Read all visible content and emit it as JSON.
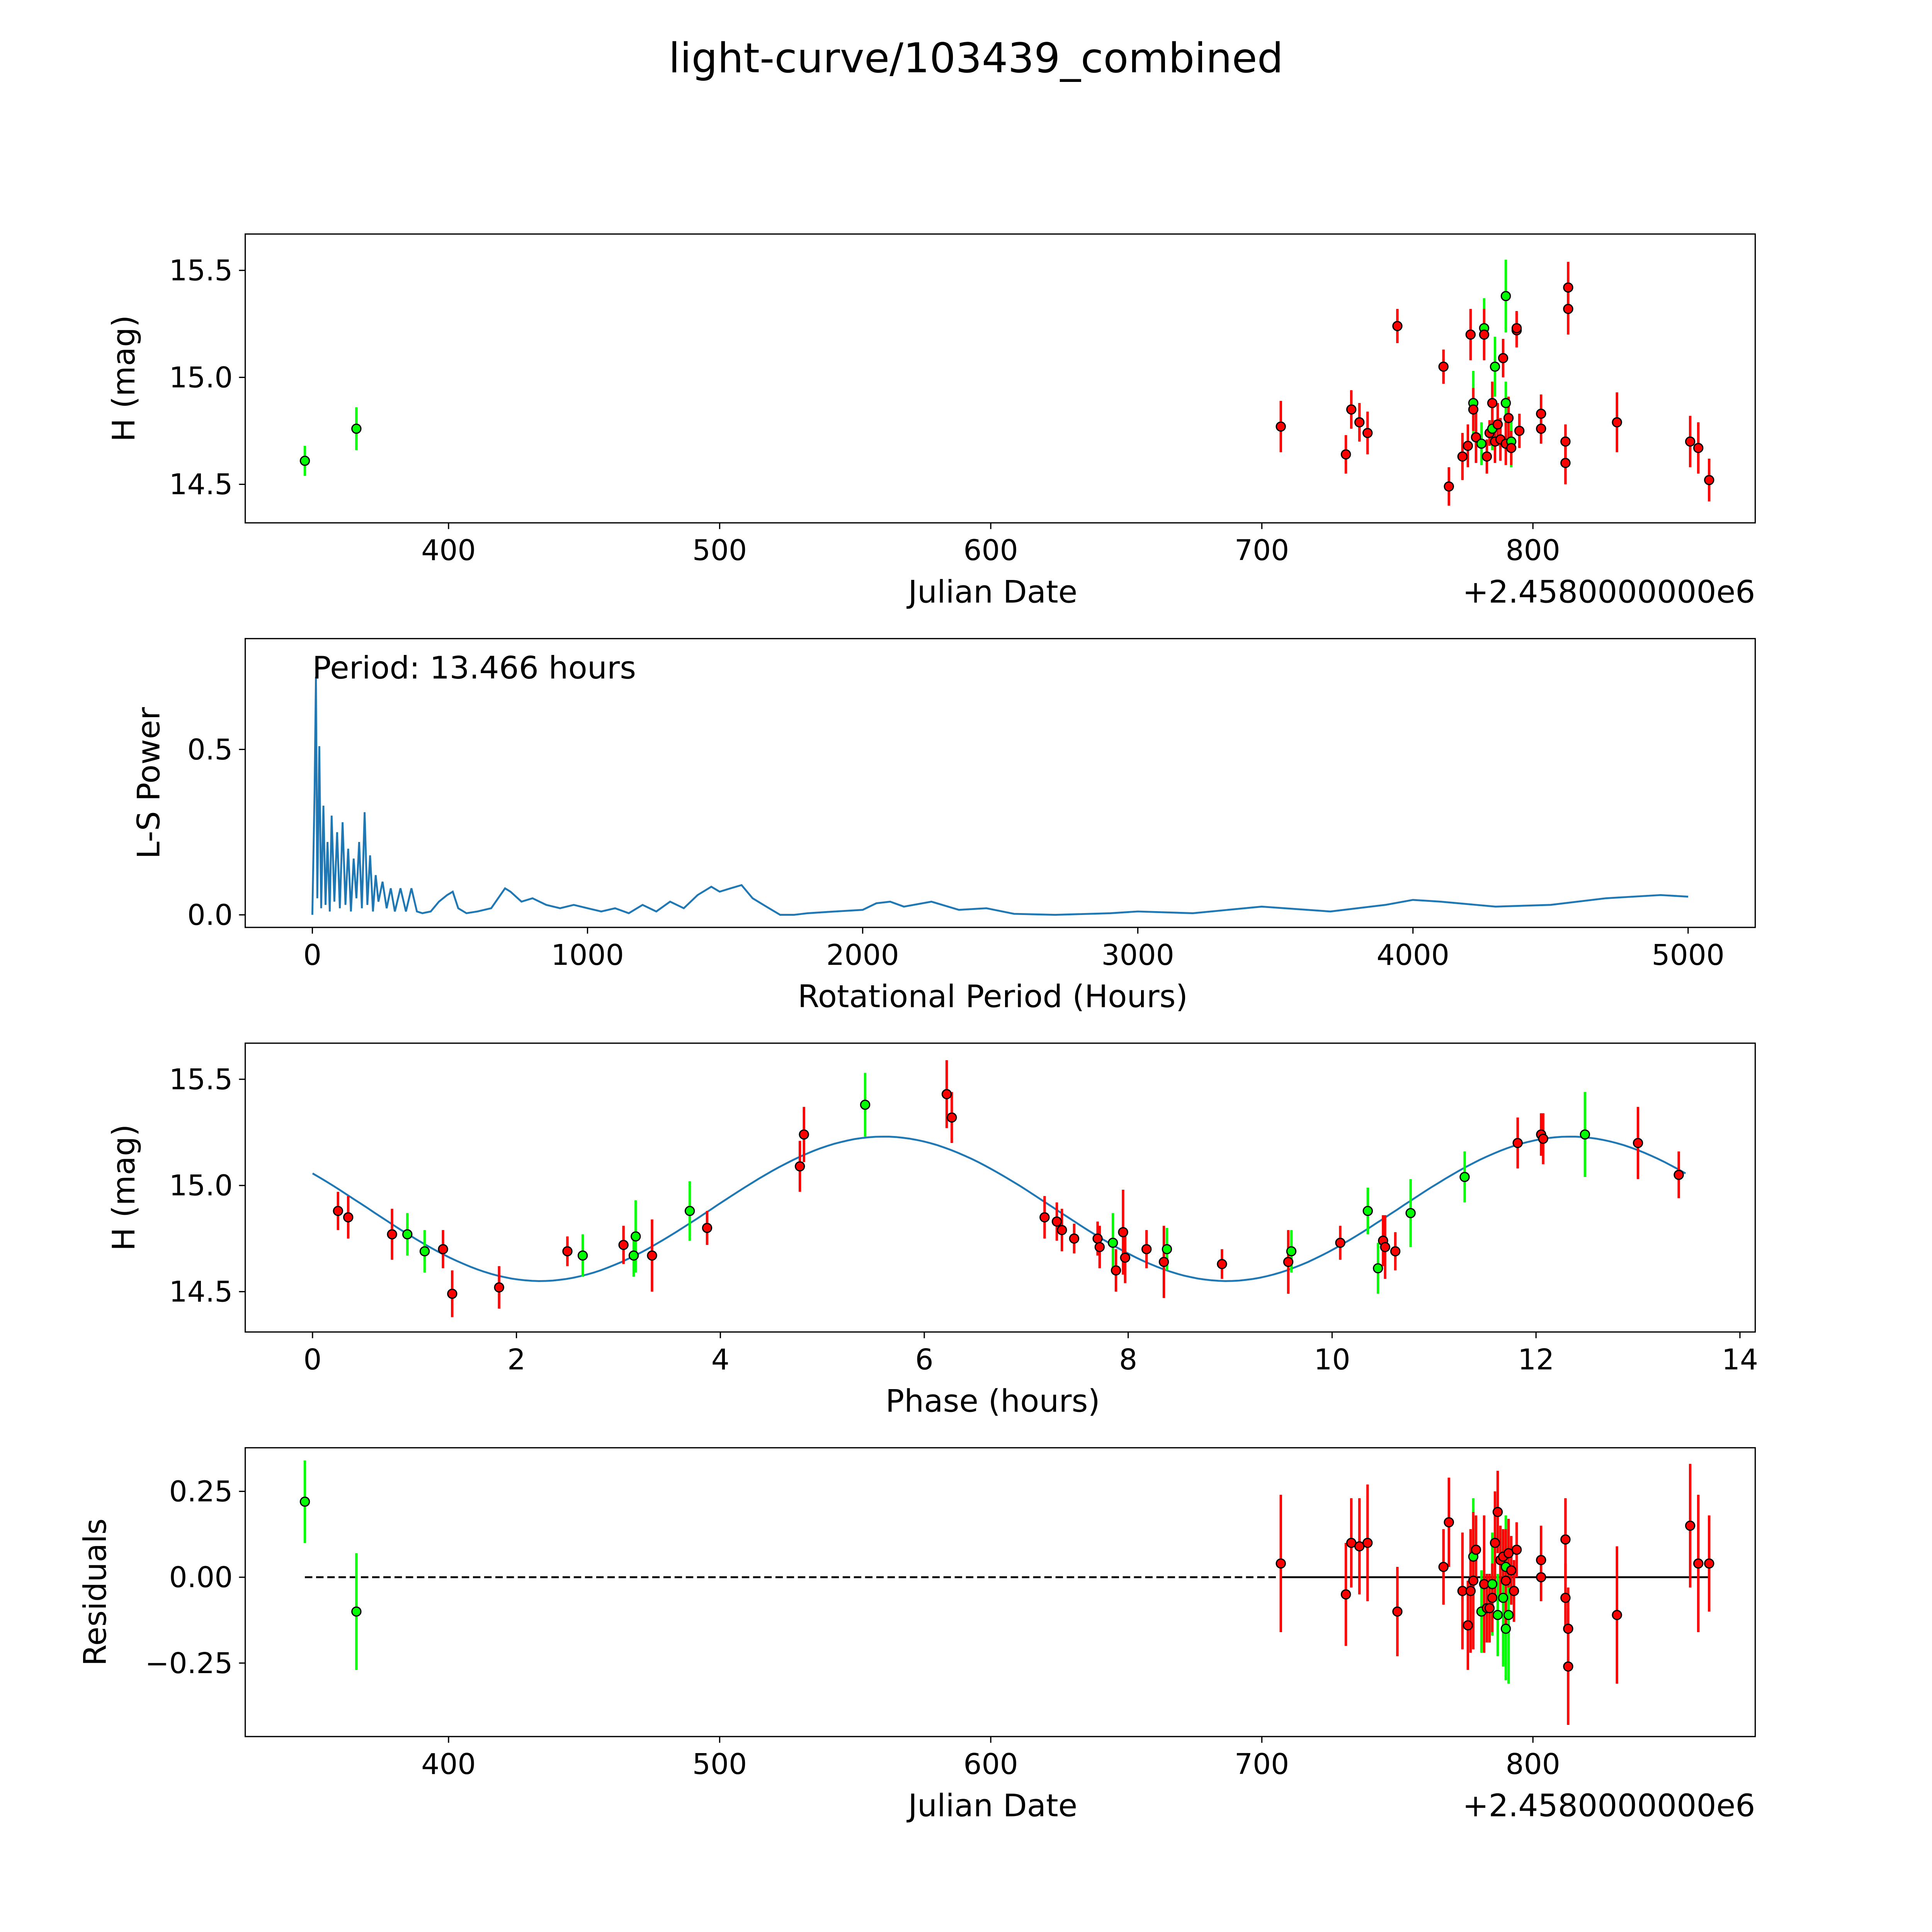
{
  "title": "light-curve/103439_combined",
  "colors": {
    "red": "#ff0000",
    "green": "#00ff00",
    "curve": "#1f77b4",
    "edge": "#000000"
  },
  "chart_data": [
    {
      "id": "p1",
      "type": "scatter",
      "xlabel": "Julian Date",
      "ylabel": "H (mag)",
      "offset_label": "+2.4580000000e6",
      "xlim": [
        325,
        882
      ],
      "ylim": [
        14.32,
        15.67
      ],
      "xticks": [
        400,
        500,
        600,
        700,
        800
      ],
      "yticks": [
        14.5,
        15.0,
        15.5
      ],
      "ytick_labels": [
        "14.5",
        "15.0",
        "15.5"
      ],
      "points": [
        [
          347,
          14.61,
          0.07,
          "green"
        ],
        [
          366,
          14.76,
          0.1,
          "green"
        ],
        [
          707,
          14.77,
          0.12,
          "red"
        ],
        [
          731,
          14.64,
          0.09,
          "red"
        ],
        [
          733,
          14.85,
          0.09,
          "red"
        ],
        [
          736,
          14.79,
          0.09,
          "red"
        ],
        [
          739,
          14.74,
          0.1,
          "red"
        ],
        [
          750,
          15.24,
          0.08,
          "red"
        ],
        [
          767,
          15.05,
          0.08,
          "red"
        ],
        [
          769,
          14.49,
          0.09,
          "red"
        ],
        [
          774,
          14.63,
          0.11,
          "red"
        ],
        [
          776,
          14.68,
          0.1,
          "red"
        ],
        [
          777,
          15.2,
          0.12,
          "red"
        ],
        [
          778,
          14.88,
          0.15,
          "green"
        ],
        [
          778,
          14.85,
          0.1,
          "red"
        ],
        [
          779,
          14.72,
          0.12,
          "red"
        ],
        [
          781,
          14.69,
          0.1,
          "green"
        ],
        [
          782,
          15.23,
          0.14,
          "green"
        ],
        [
          782,
          15.2,
          0.12,
          "red"
        ],
        [
          783,
          14.63,
          0.08,
          "red"
        ],
        [
          784,
          14.74,
          0.06,
          "red"
        ],
        [
          785,
          14.76,
          0.1,
          "green"
        ],
        [
          785,
          14.88,
          0.1,
          "red"
        ],
        [
          786,
          15.05,
          0.14,
          "green"
        ],
        [
          786,
          14.7,
          0.1,
          "red"
        ],
        [
          787,
          14.78,
          0.1,
          "red"
        ],
        [
          788,
          14.71,
          0.1,
          "red"
        ],
        [
          789,
          15.09,
          0.09,
          "red"
        ],
        [
          790,
          15.38,
          0.17,
          "green"
        ],
        [
          790,
          14.88,
          0.1,
          "green"
        ],
        [
          790,
          14.69,
          0.1,
          "red"
        ],
        [
          791,
          14.81,
          0.1,
          "red"
        ],
        [
          792,
          14.7,
          0.12,
          "green"
        ],
        [
          792,
          14.67,
          0.08,
          "red"
        ],
        [
          794,
          15.22,
          0.08,
          "red"
        ],
        [
          794,
          15.23,
          0.08,
          "red"
        ],
        [
          795,
          14.75,
          0.08,
          "red"
        ],
        [
          803,
          14.83,
          0.09,
          "red"
        ],
        [
          803,
          14.76,
          0.07,
          "red"
        ],
        [
          812,
          14.7,
          0.08,
          "red"
        ],
        [
          812,
          14.6,
          0.1,
          "red"
        ],
        [
          813,
          15.42,
          0.12,
          "red"
        ],
        [
          813,
          15.32,
          0.12,
          "red"
        ],
        [
          831,
          14.79,
          0.14,
          "red"
        ],
        [
          858,
          14.7,
          0.12,
          "red"
        ],
        [
          861,
          14.67,
          0.12,
          "red"
        ],
        [
          865,
          14.52,
          0.1,
          "red"
        ]
      ]
    },
    {
      "id": "p2",
      "type": "line",
      "xlabel": "Rotational Period (Hours)",
      "ylabel": "L-S Power",
      "annotation": "Period: 13.466 hours",
      "xlim": [
        -244,
        5244
      ],
      "ylim": [
        -0.038,
        0.835
      ],
      "xticks": [
        0,
        1000,
        2000,
        3000,
        4000,
        5000
      ],
      "yticks": [
        0,
        0.5
      ],
      "ytick_labels": [
        "0.0",
        "0.5"
      ],
      "x": [
        0,
        8,
        13,
        18,
        25,
        32,
        40,
        48,
        55,
        63,
        70,
        80,
        90,
        100,
        110,
        120,
        130,
        140,
        150,
        160,
        170,
        180,
        190,
        200,
        210,
        220,
        230,
        240,
        255,
        270,
        285,
        300,
        320,
        340,
        360,
        380,
        400,
        430,
        460,
        490,
        510,
        530,
        560,
        600,
        650,
        700,
        720,
        760,
        800,
        850,
        900,
        950,
        1000,
        1050,
        1100,
        1150,
        1200,
        1250,
        1300,
        1350,
        1400,
        1450,
        1480,
        1520,
        1560,
        1600,
        1650,
        1700,
        1750,
        1800,
        1900,
        2000,
        2050,
        2100,
        2150,
        2250,
        2350,
        2450,
        2550,
        2700,
        2900,
        3000,
        3200,
        3450,
        3700,
        3900,
        4000,
        4100,
        4300,
        4500,
        4700,
        4900,
        5000
      ],
      "y": [
        0,
        0.37,
        0.72,
        0.05,
        0.51,
        0.02,
        0.33,
        0.03,
        0.22,
        0.01,
        0.3,
        0.04,
        0.25,
        0.02,
        0.28,
        0.03,
        0.2,
        0.01,
        0.17,
        0.05,
        0.22,
        0.02,
        0.31,
        0.03,
        0.18,
        0.01,
        0.12,
        0.04,
        0.1,
        0.02,
        0.08,
        0.01,
        0.08,
        0.01,
        0.08,
        0.01,
        0.005,
        0.01,
        0.04,
        0.06,
        0.07,
        0.02,
        0.005,
        0.01,
        0.02,
        0.08,
        0.07,
        0.04,
        0.05,
        0.03,
        0.02,
        0.03,
        0.02,
        0.01,
        0.02,
        0.005,
        0.03,
        0.01,
        0.04,
        0.02,
        0.06,
        0.085,
        0.07,
        0.08,
        0.09,
        0.05,
        0.025,
        0.0,
        0.0,
        0.005,
        0.01,
        0.015,
        0.035,
        0.04,
        0.025,
        0.04,
        0.015,
        0.02,
        0.003,
        0.0,
        0.005,
        0.01,
        0.005,
        0.025,
        0.01,
        0.03,
        0.045,
        0.04,
        0.025,
        0.03,
        0.05,
        0.06,
        0.055
      ]
    },
    {
      "id": "p3",
      "type": "scatter",
      "xlabel": "Phase (hours)",
      "ylabel": "H (mag)",
      "xlim": [
        -0.66,
        14.15
      ],
      "ylim": [
        14.31,
        15.67
      ],
      "xticks": [
        0,
        2,
        4,
        6,
        8,
        10,
        12,
        14
      ],
      "yticks": [
        14.5,
        15.0,
        15.5
      ],
      "ytick_labels": [
        "14.5",
        "15.0",
        "15.5"
      ],
      "fit": {
        "mean": 14.89,
        "amplitude": 0.34,
        "period": 13.466,
        "peak": 5.6
      },
      "points": [
        [
          0.25,
          14.88,
          0.09,
          "red"
        ],
        [
          0.35,
          14.85,
          0.1,
          "red"
        ],
        [
          0.78,
          14.77,
          0.12,
          "red"
        ],
        [
          0.93,
          14.77,
          0.1,
          "green"
        ],
        [
          1.1,
          14.69,
          0.1,
          "green"
        ],
        [
          1.28,
          14.7,
          0.09,
          "red"
        ],
        [
          1.37,
          14.49,
          0.11,
          "red"
        ],
        [
          1.83,
          14.52,
          0.1,
          "red"
        ],
        [
          2.5,
          14.69,
          0.07,
          "red"
        ],
        [
          2.65,
          14.67,
          0.1,
          "green"
        ],
        [
          3.05,
          14.72,
          0.09,
          "red"
        ],
        [
          3.15,
          14.67,
          0.1,
          "green"
        ],
        [
          3.17,
          14.76,
          0.17,
          "green"
        ],
        [
          3.33,
          14.67,
          0.17,
          "red"
        ],
        [
          3.7,
          14.88,
          0.14,
          "green"
        ],
        [
          3.87,
          14.8,
          0.08,
          "red"
        ],
        [
          4.78,
          15.09,
          0.12,
          "red"
        ],
        [
          4.82,
          15.24,
          0.13,
          "red"
        ],
        [
          5.42,
          15.38,
          0.15,
          "green"
        ],
        [
          6.22,
          15.43,
          0.16,
          "red"
        ],
        [
          6.27,
          15.32,
          0.12,
          "red"
        ],
        [
          7.18,
          14.85,
          0.1,
          "red"
        ],
        [
          7.3,
          14.83,
          0.09,
          "red"
        ],
        [
          7.35,
          14.79,
          0.1,
          "red"
        ],
        [
          7.47,
          14.75,
          0.07,
          "red"
        ],
        [
          7.7,
          14.75,
          0.08,
          "red"
        ],
        [
          7.72,
          14.71,
          0.1,
          "red"
        ],
        [
          7.85,
          14.73,
          0.14,
          "green"
        ],
        [
          7.88,
          14.6,
          0.1,
          "red"
        ],
        [
          7.95,
          14.78,
          0.2,
          "red"
        ],
        [
          7.97,
          14.66,
          0.12,
          "red"
        ],
        [
          8.18,
          14.7,
          0.09,
          "red"
        ],
        [
          8.35,
          14.64,
          0.17,
          "red"
        ],
        [
          8.38,
          14.7,
          0.1,
          "green"
        ],
        [
          8.92,
          14.63,
          0.07,
          "red"
        ],
        [
          9.57,
          14.64,
          0.15,
          "red"
        ],
        [
          9.6,
          14.69,
          0.1,
          "green"
        ],
        [
          10.08,
          14.73,
          0.08,
          "red"
        ],
        [
          10.35,
          14.88,
          0.11,
          "green"
        ],
        [
          10.45,
          14.61,
          0.12,
          "green"
        ],
        [
          10.5,
          14.74,
          0.12,
          "red"
        ],
        [
          10.52,
          14.71,
          0.15,
          "red"
        ],
        [
          10.62,
          14.69,
          0.09,
          "red"
        ],
        [
          10.77,
          14.87,
          0.16,
          "green"
        ],
        [
          11.3,
          15.04,
          0.12,
          "green"
        ],
        [
          11.82,
          15.2,
          0.12,
          "red"
        ],
        [
          12.05,
          15.24,
          0.1,
          "red"
        ],
        [
          12.07,
          15.22,
          0.12,
          "red"
        ],
        [
          12.48,
          15.24,
          0.2,
          "green"
        ],
        [
          13.0,
          15.2,
          0.17,
          "red"
        ],
        [
          13.4,
          15.05,
          0.11,
          "red"
        ]
      ]
    },
    {
      "id": "p4",
      "type": "scatter",
      "xlabel": "Julian Date",
      "ylabel": "Residuals",
      "offset_label": "+2.4580000000e6",
      "xlim": [
        325,
        882
      ],
      "ylim": [
        -0.464,
        0.377
      ],
      "xticks": [
        400,
        500,
        600,
        700,
        800
      ],
      "yticks": [
        -0.25,
        0,
        0.25
      ],
      "ytick_labels": [
        "−0.25",
        "0.00",
        "0.25"
      ],
      "zero_line": {
        "dashed": [
          347,
          707
        ],
        "solid": [
          707,
          865
        ]
      },
      "points": [
        [
          347,
          0.22,
          0.12,
          "green"
        ],
        [
          366,
          -0.1,
          0.17,
          "green"
        ],
        [
          707,
          0.04,
          0.2,
          "red"
        ],
        [
          731,
          -0.05,
          0.15,
          "red"
        ],
        [
          733,
          0.1,
          0.13,
          "red"
        ],
        [
          736,
          0.09,
          0.14,
          "red"
        ],
        [
          739,
          0.1,
          0.17,
          "red"
        ],
        [
          750,
          -0.1,
          0.13,
          "red"
        ],
        [
          767,
          0.03,
          0.11,
          "red"
        ],
        [
          769,
          0.16,
          0.13,
          "red"
        ],
        [
          774,
          -0.04,
          0.17,
          "red"
        ],
        [
          776,
          -0.14,
          0.13,
          "red"
        ],
        [
          777,
          -0.04,
          0.18,
          "red"
        ],
        [
          778,
          0.06,
          0.17,
          "green"
        ],
        [
          778,
          -0.01,
          0.2,
          "red"
        ],
        [
          779,
          0.08,
          0.1,
          "red"
        ],
        [
          781,
          -0.1,
          0.12,
          "green"
        ],
        [
          782,
          -0.02,
          0.2,
          "red"
        ],
        [
          783,
          -0.09,
          0.1,
          "red"
        ],
        [
          784,
          -0.09,
          0.1,
          "red"
        ],
        [
          785,
          -0.02,
          0.15,
          "green"
        ],
        [
          785,
          -0.06,
          0.1,
          "red"
        ],
        [
          786,
          0.1,
          0.15,
          "red"
        ],
        [
          787,
          -0.11,
          0.12,
          "green"
        ],
        [
          787,
          0.19,
          0.12,
          "red"
        ],
        [
          788,
          0.05,
          0.1,
          "red"
        ],
        [
          789,
          -0.06,
          0.2,
          "green"
        ],
        [
          789,
          0.06,
          0.08,
          "red"
        ],
        [
          790,
          -0.15,
          0.15,
          "green"
        ],
        [
          790,
          0.03,
          0.15,
          "green"
        ],
        [
          790,
          -0.01,
          0.15,
          "red"
        ],
        [
          791,
          -0.11,
          0.2,
          "green"
        ],
        [
          791,
          0.07,
          0.1,
          "red"
        ],
        [
          792,
          0.02,
          0.1,
          "red"
        ],
        [
          793,
          -0.04,
          0.09,
          "red"
        ],
        [
          794,
          0.08,
          0.08,
          "red"
        ],
        [
          803,
          0.05,
          0.1,
          "red"
        ],
        [
          803,
          0.0,
          0.07,
          "red"
        ],
        [
          812,
          0.11,
          0.12,
          "red"
        ],
        [
          812,
          -0.06,
          0.1,
          "red"
        ],
        [
          813,
          -0.15,
          0.12,
          "red"
        ],
        [
          813,
          -0.26,
          0.17,
          "red"
        ],
        [
          831,
          -0.11,
          0.2,
          "red"
        ],
        [
          858,
          0.15,
          0.18,
          "red"
        ],
        [
          861,
          0.04,
          0.2,
          "red"
        ],
        [
          865,
          0.04,
          0.14,
          "red"
        ]
      ]
    }
  ]
}
